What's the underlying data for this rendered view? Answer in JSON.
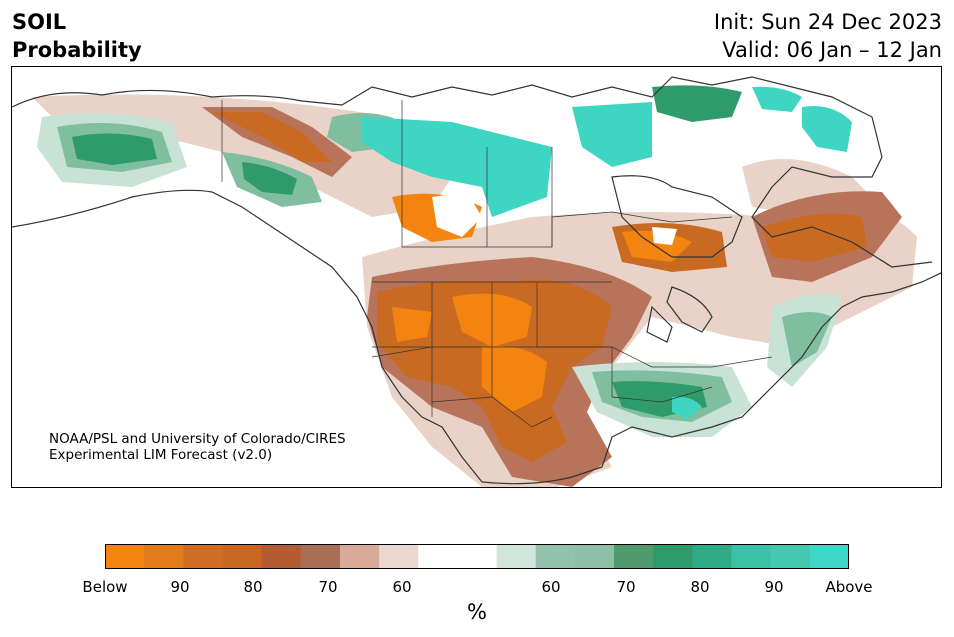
{
  "header": {
    "title_line1": "SOIL",
    "title_line2": "Probability",
    "init": "Init: Sun 24 Dec 2023",
    "valid": "Valid: 06 Jan – 12 Jan"
  },
  "credit": {
    "line1": "NOAA/PSL and University of Colorado/CIRES",
    "line2": "Experimental LIM Forecast (v2.0)"
  },
  "colorbar": {
    "colors": [
      "#f3840f",
      "#e37b1b",
      "#d16d22",
      "#c96622",
      "#b45c32",
      "#aa6d55",
      "#d8a996",
      "#ead8d0",
      "#ffffff",
      "#ffffff",
      "#d0e5dc",
      "#93c2ab",
      "#8fbfa7",
      "#4f9b6e",
      "#2f9a6a",
      "#2eab85",
      "#3bc2a6",
      "#44c9b0",
      "#3ed9c6"
    ],
    "tick_labels": [
      "Below",
      "90",
      "80",
      "70",
      "60",
      "60",
      "70",
      "80",
      "90",
      "Above"
    ],
    "units": "%"
  },
  "map_legend": {
    "below_color": "#e0780f",
    "below_mid_color": "#c26a2a",
    "below_light_color": "#b8745a",
    "below_faint_color": "#e9d3c8",
    "above_faint_color": "#c8e2d5",
    "above_light_color": "#7fbf9f",
    "above_mid_color": "#2f9a6a",
    "above_color": "#3ed6c2",
    "coast_color": "#333333"
  }
}
